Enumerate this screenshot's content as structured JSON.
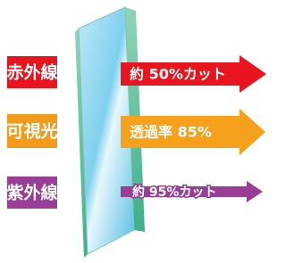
{
  "rays": [
    {
      "label": "赤外線",
      "arrow": "約 50%カット"
    },
    {
      "label": "可視光",
      "arrow": "透過率 85%"
    },
    {
      "label": "紫外線",
      "arrow": "約 95%カット"
    }
  ]
}
